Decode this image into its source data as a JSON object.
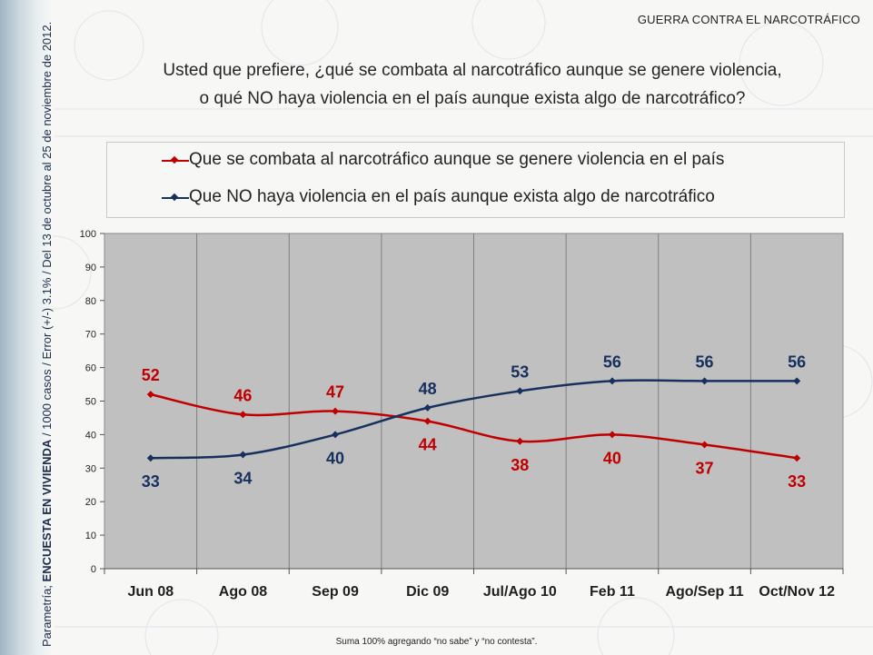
{
  "header": {
    "section_tag": "GUERRA CONTRA EL NARCOTRÁFICO",
    "question_line1": "Usted que prefiere, ¿qué se combata al narcotráfico aunque se genere violencia,",
    "question_line2": "o qué NO haya violencia en el país aunque exista algo de narcotráfico?"
  },
  "side_caption": {
    "prefix": "Parametría; ",
    "survey": "ENCUESTA EN VIVIENDA",
    "details": " / 1000 casos / Error (+/-) 3.1% / Del 13 de octubre al 25 de noviembre de 2012."
  },
  "footnote": "Suma 100%  agregando “no sabe” y “no contesta”.",
  "colors": {
    "red": "#c00000",
    "navy": "#17305e",
    "plot_bg": "#c0c0c0"
  },
  "chart_data": {
    "type": "line",
    "categories": [
      "Jun 08",
      "Ago 08",
      "Sep 09",
      "Dic 09",
      "Jul/Ago 10",
      "Feb 11",
      "Ago/Sep 11",
      "Oct/Nov 12"
    ],
    "ylim": [
      0,
      100
    ],
    "yticks": [
      0,
      10,
      20,
      30,
      40,
      50,
      60,
      70,
      80,
      90,
      100
    ],
    "grid": "vertical",
    "legend_position": "top",
    "series": [
      {
        "name": "Que se combata al narcotráfico aunque se genere violencia en el país",
        "color": "#c00000",
        "values": [
          52,
          46,
          47,
          44,
          38,
          40,
          37,
          33
        ],
        "label_pos": [
          "above",
          "above",
          "above",
          "below",
          "below",
          "below",
          "below",
          "below"
        ]
      },
      {
        "name": "Que NO haya violencia en el país aunque exista algo de narcotráfico",
        "color": "#17305e",
        "values": [
          33,
          34,
          40,
          48,
          53,
          56,
          56,
          56
        ],
        "label_pos": [
          "below",
          "below",
          "below",
          "above",
          "above",
          "above",
          "above",
          "above"
        ]
      }
    ]
  }
}
